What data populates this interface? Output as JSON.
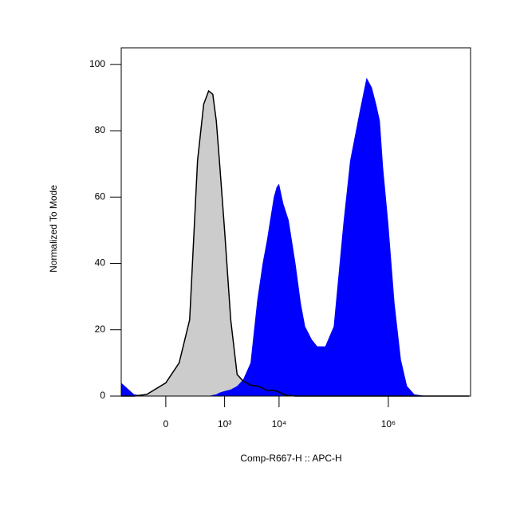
{
  "chart_data": {
    "type": "histogram-overlay",
    "x_label": "Comp-R667-H :: APC-H",
    "y_label": "Normalized To Mode",
    "x_scale": "biexponential",
    "x": [
      -540,
      -300,
      -150,
      0,
      100,
      200,
      300,
      400,
      500,
      600,
      700,
      800,
      1000,
      1300,
      1700,
      2200,
      3000,
      4000,
      5000,
      6000,
      7000,
      8000,
      9000,
      10000,
      12000,
      15000,
      20000,
      25000,
      30000,
      40000,
      50000,
      70000,
      100000,
      150000,
      200000,
      300000,
      400000,
      500000,
      600000,
      700000,
      800000,
      1000000,
      1300000,
      1700000,
      2200000,
      3000000,
      5000000,
      10000000,
      30000000
    ],
    "series": [
      {
        "color": "#cccccc",
        "values": [
          0,
          0,
          0.5,
          4,
          10,
          23,
          71,
          88,
          92,
          91,
          83,
          71,
          50,
          23,
          6.5,
          4.5,
          3.3,
          3,
          2.4,
          1.7,
          1.7,
          1.7,
          1.5,
          1.2,
          0.5,
          0.2,
          0,
          0,
          0,
          0,
          0,
          0,
          0,
          0,
          0,
          0,
          0,
          0,
          0,
          0,
          0,
          0,
          0,
          0,
          0,
          0,
          0,
          0,
          0
        ]
      },
      {
        "color": "#0000ff",
        "values": [
          4,
          0.5,
          0,
          0,
          0,
          0,
          0,
          0,
          0,
          0.3,
          0.5,
          1,
          1.5,
          2,
          3,
          5,
          10,
          29,
          40,
          47,
          54,
          60,
          63,
          64,
          58,
          53,
          40,
          28,
          21,
          17,
          15,
          15,
          21,
          52,
          71,
          86,
          96,
          93,
          88,
          83,
          69,
          52,
          28,
          11,
          3,
          0.5,
          0,
          0,
          0
        ]
      }
    ],
    "xlim": [
      -540,
      32000000
    ],
    "xticks": [
      0,
      {
        "value": 1000,
        "label": "10³"
      },
      {
        "value": 10000,
        "label": "10⁴"
      },
      {
        "value": 1000000,
        "label": "10⁶"
      }
    ],
    "ylim": [
      0,
      105
    ],
    "yticks": [
      0,
      20,
      40,
      60,
      80,
      100
    ]
  }
}
